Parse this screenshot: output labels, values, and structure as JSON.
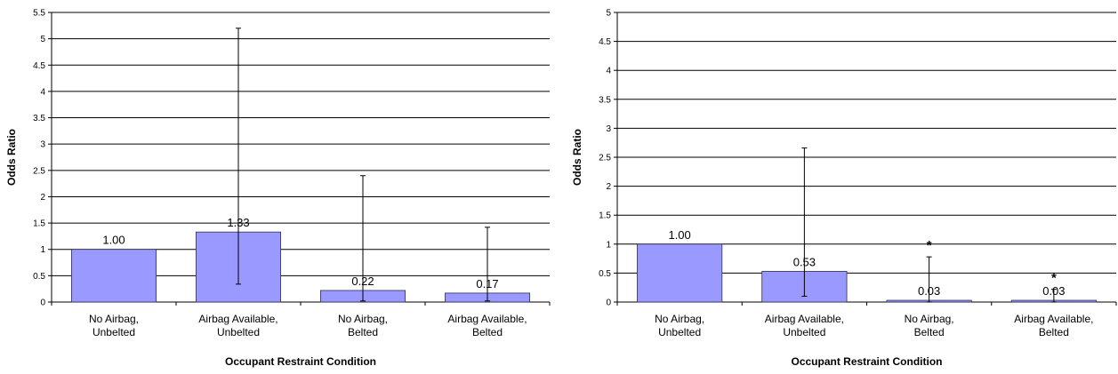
{
  "colors": {
    "bar_fill": "#9999ff",
    "bar_stroke": "#2f2f55",
    "gridline": "#000000",
    "text": "#000000"
  },
  "chart_data": [
    {
      "type": "bar",
      "title": "",
      "xlabel": "Occupant Restraint Condition",
      "ylabel": "Odds Ratio",
      "ylim": [
        0,
        5.5
      ],
      "yticks": [
        0,
        0.5,
        1,
        1.5,
        2,
        2.5,
        3,
        3.5,
        4,
        4.5,
        5,
        5.5
      ],
      "grid": true,
      "legend": "none",
      "categories": [
        [
          "No Airbag,",
          "Unbelted"
        ],
        [
          "Airbag Available,",
          "Unbelted"
        ],
        [
          "No Airbag,",
          "Belted"
        ],
        [
          "Airbag Available,",
          "Belted"
        ]
      ],
      "values": [
        1.0,
        1.33,
        0.22,
        0.17
      ],
      "data_labels": [
        "1.00",
        "1.33",
        "0.22",
        "0.17"
      ],
      "error_low": [
        null,
        0.34,
        0.02,
        0.02
      ],
      "error_high": [
        null,
        5.2,
        2.4,
        1.42
      ],
      "significance_markers": [
        "",
        "",
        "",
        ""
      ]
    },
    {
      "type": "bar",
      "title": "",
      "xlabel": "Occupant Restraint Condition",
      "ylabel": "Odds Ratio",
      "ylim": [
        0,
        5
      ],
      "yticks": [
        0,
        0.5,
        1,
        1.5,
        2,
        2.5,
        3,
        3.5,
        4,
        4.5,
        5
      ],
      "grid": true,
      "legend": "none",
      "categories": [
        [
          "No Airbag,",
          "Unbelted"
        ],
        [
          "Airbag Available,",
          "Unbelted"
        ],
        [
          "No Airbag,",
          "Belted"
        ],
        [
          "Airbag Available,",
          "Belted"
        ]
      ],
      "values": [
        1.0,
        0.53,
        0.03,
        0.03
      ],
      "data_labels": [
        "1.00",
        "0.53",
        "0.03",
        "0.03"
      ],
      "error_low": [
        null,
        0.1,
        0.0,
        0.0
      ],
      "error_high": [
        null,
        2.66,
        0.78,
        0.22
      ],
      "significance_markers": [
        "",
        "",
        "*",
        "*"
      ]
    }
  ]
}
